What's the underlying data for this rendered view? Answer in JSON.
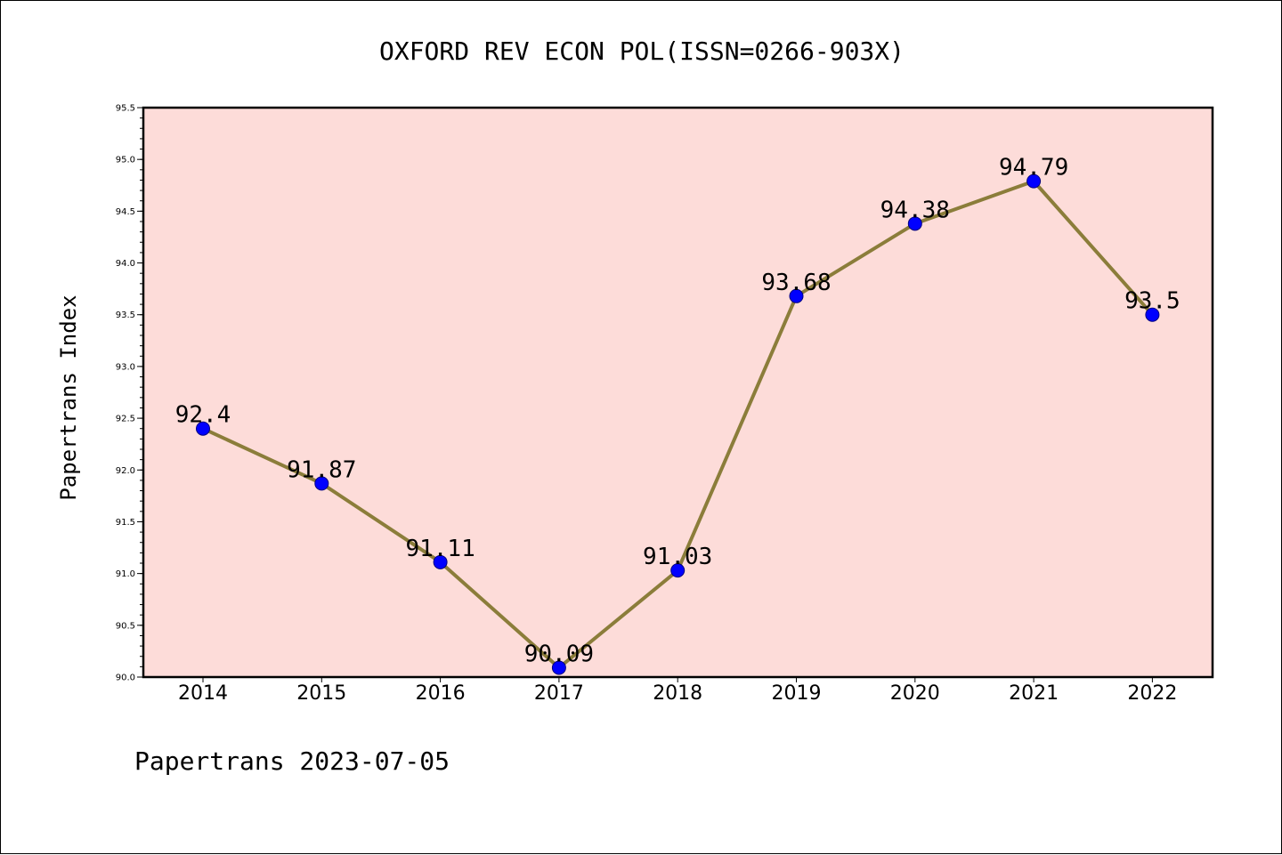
{
  "chart_data": {
    "type": "line",
    "title": "OXFORD REV ECON POL(ISSN=0266-903X)",
    "xlabel": "",
    "ylabel": "Papertrans Index",
    "categories": [
      "2014",
      "2015",
      "2016",
      "2017",
      "2018",
      "2019",
      "2020",
      "2021",
      "2022"
    ],
    "series": [
      {
        "values": [
          92.4,
          91.87,
          91.11,
          90.09,
          91.03,
          93.68,
          94.38,
          94.79,
          93.5
        ],
        "labels": [
          "92.4",
          "91.87",
          "91.11",
          "90.09",
          "91.03",
          "93.68",
          "94.38",
          "94.79",
          "93.5"
        ]
      }
    ],
    "ylim": [
      90.0,
      95.5
    ],
    "yticks": [
      "90.0",
      "90.5",
      "91.0",
      "91.5",
      "92.0",
      "92.5",
      "93.0",
      "93.5",
      "94.0",
      "94.5",
      "95.0",
      "95.5"
    ],
    "ytick_values": [
      90.0,
      90.5,
      91.0,
      91.5,
      92.0,
      92.5,
      93.0,
      93.5,
      94.0,
      94.5,
      95.0,
      95.5
    ],
    "grid": false,
    "legend": "none",
    "footer": "Papertrans 2023-07-05",
    "colors": {
      "plot_background": "#fddcd9",
      "line": "#8b7d3a",
      "marker": "#0000ff",
      "marker_edge": "#000080"
    }
  }
}
